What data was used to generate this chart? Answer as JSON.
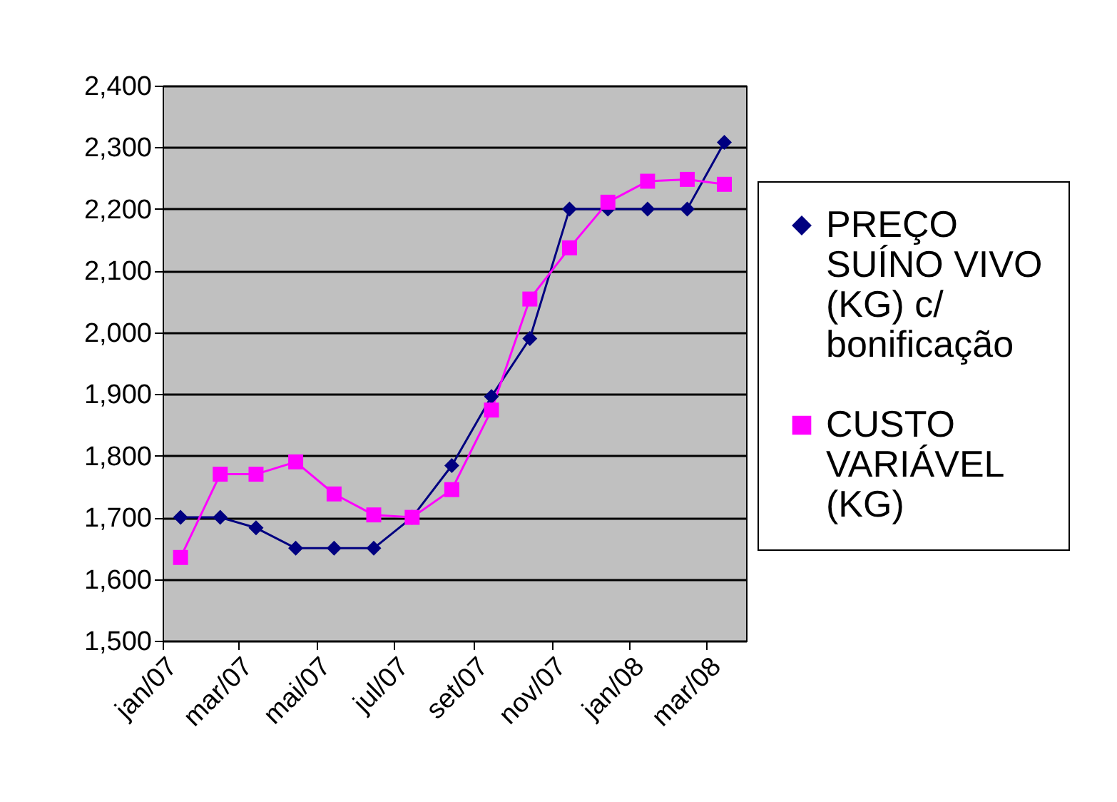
{
  "chart_data": {
    "type": "line",
    "x": [
      "2007-01-15",
      "2007-02-15",
      "2007-03-15",
      "2007-04-15",
      "2007-05-15",
      "2007-06-15",
      "2007-07-15",
      "2007-08-15",
      "2007-09-15",
      "2007-10-15",
      "2007-11-15",
      "2007-12-15",
      "2008-01-15",
      "2008-02-15",
      "2008-03-15"
    ],
    "series": [
      {
        "name": "PREÇO\nSUÍNO VIVO\n(KG) c/\nbonificação",
        "color": "#000080",
        "marker": "diamond",
        "values": [
          1700,
          1700,
          1683,
          1650,
          1650,
          1650,
          1700,
          1784,
          1896,
          1990,
          2200,
          2200,
          2200,
          2200,
          2308
        ]
      },
      {
        "name": "CUSTO\nVARIÁVEL\n(KG)",
        "color": "#ff00ff",
        "marker": "square",
        "values": [
          1635,
          1770,
          1770,
          1790,
          1738,
          1704,
          1700,
          1745,
          1874,
          2054,
          2137,
          2211,
          2245,
          2248,
          2240
        ]
      }
    ],
    "xlim": [
      "2007-01-01",
      "2008-04-01"
    ],
    "xticks": [
      {
        "value": "2007-01-01",
        "label": "jan/07"
      },
      {
        "value": "2007-03-01",
        "label": "mar/07"
      },
      {
        "value": "2007-05-01",
        "label": "mai/07"
      },
      {
        "value": "2007-07-01",
        "label": "jul/07"
      },
      {
        "value": "2007-09-01",
        "label": "set/07"
      },
      {
        "value": "2007-11-01",
        "label": "nov/07"
      },
      {
        "value": "2008-01-01",
        "label": "jan/08"
      },
      {
        "value": "2008-03-01",
        "label": "mar/08"
      }
    ],
    "ylim": [
      1500,
      2400
    ],
    "yticks": [
      {
        "value": 1500,
        "label": "1,500"
      },
      {
        "value": 1600,
        "label": "1,600"
      },
      {
        "value": 1700,
        "label": "1,700"
      },
      {
        "value": 1800,
        "label": "1,800"
      },
      {
        "value": 1900,
        "label": "1,900"
      },
      {
        "value": 2000,
        "label": "2,000"
      },
      {
        "value": 2100,
        "label": "2,100"
      },
      {
        "value": 2200,
        "label": "2,200"
      },
      {
        "value": 2300,
        "label": "2,300"
      },
      {
        "value": 2400,
        "label": "2,400"
      }
    ],
    "grid": "y",
    "legend": "right",
    "line_style": "solid"
  }
}
